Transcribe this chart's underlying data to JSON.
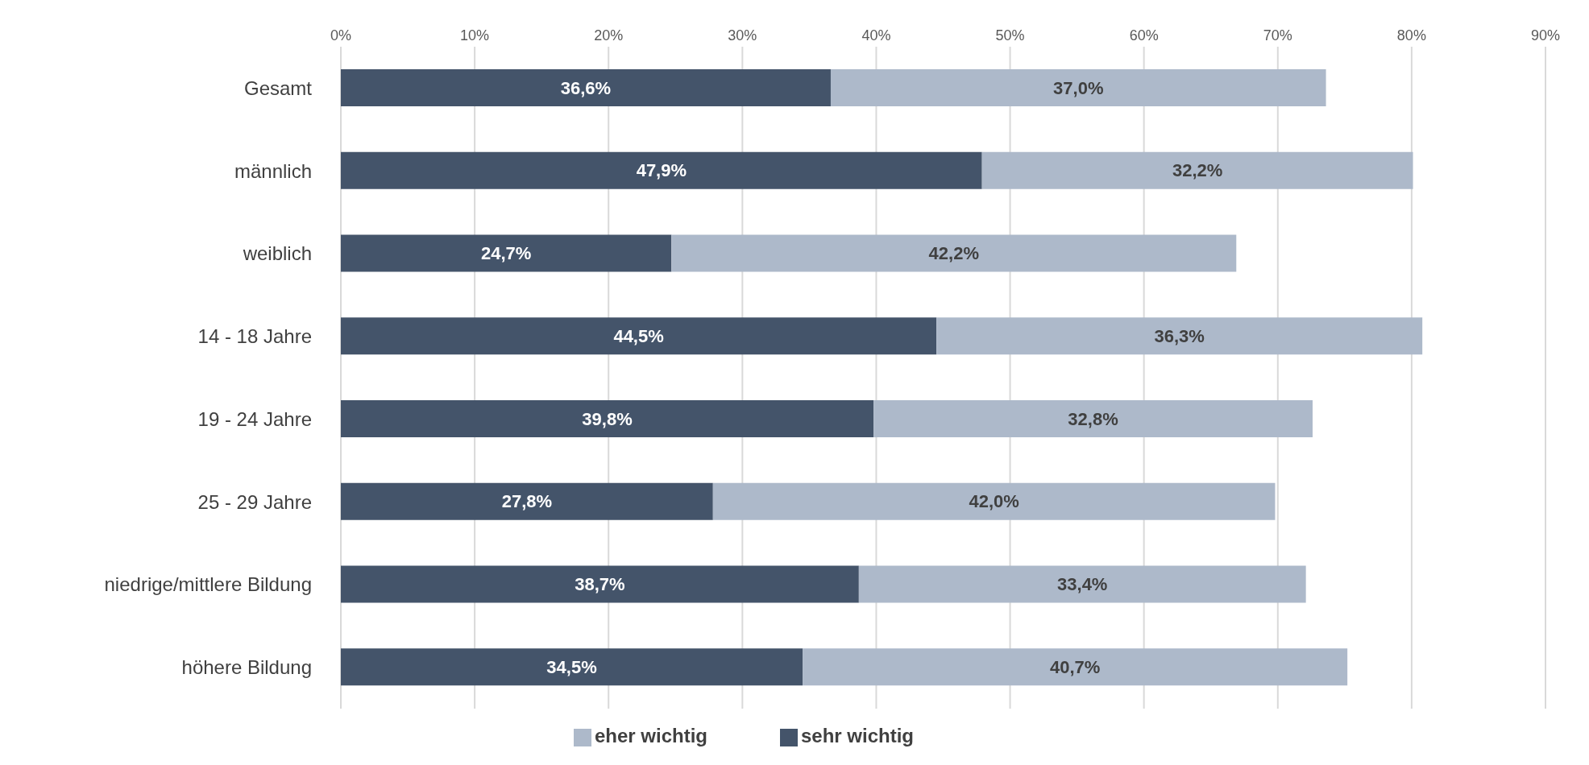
{
  "chart_data": {
    "type": "bar",
    "orientation": "horizontal",
    "stacked": true,
    "categories": [
      "Gesamt",
      "männlich",
      "weiblich",
      "14 - 18 Jahre",
      "19 - 24 Jahre",
      "25 - 29 Jahre",
      "niedrige/mittlere Bildung",
      "höhere Bildung"
    ],
    "series": [
      {
        "name": "sehr wichtig",
        "color": "#44546a",
        "values": [
          36.6,
          47.9,
          24.7,
          44.5,
          39.8,
          27.8,
          38.7,
          34.5
        ],
        "value_labels": [
          "36,6%",
          "47,9%",
          "24,7%",
          "44,5%",
          "39,8%",
          "27,8%",
          "38,7%",
          "34,5%"
        ]
      },
      {
        "name": "eher wichtig",
        "color": "#adb9ca",
        "values": [
          37.0,
          32.2,
          42.2,
          36.3,
          32.8,
          42.0,
          33.4,
          40.7
        ],
        "value_labels": [
          "37,0%",
          "32,2%",
          "42,2%",
          "36,3%",
          "32,8%",
          "42,0%",
          "33,4%",
          "40,7%"
        ]
      }
    ],
    "xlim": [
      0,
      90
    ],
    "xticks": [
      {
        "value": 0,
        "label": "0%"
      },
      {
        "value": 10,
        "label": "10%"
      },
      {
        "value": 20,
        "label": "20%"
      },
      {
        "value": 30,
        "label": "30%"
      },
      {
        "value": 40,
        "label": "40%"
      },
      {
        "value": 50,
        "label": "50%"
      },
      {
        "value": 60,
        "label": "60%"
      },
      {
        "value": 70,
        "label": "70%"
      },
      {
        "value": 80,
        "label": "80%"
      },
      {
        "value": 90,
        "label": "90%"
      }
    ],
    "grid": "x",
    "legend": "bottom"
  }
}
